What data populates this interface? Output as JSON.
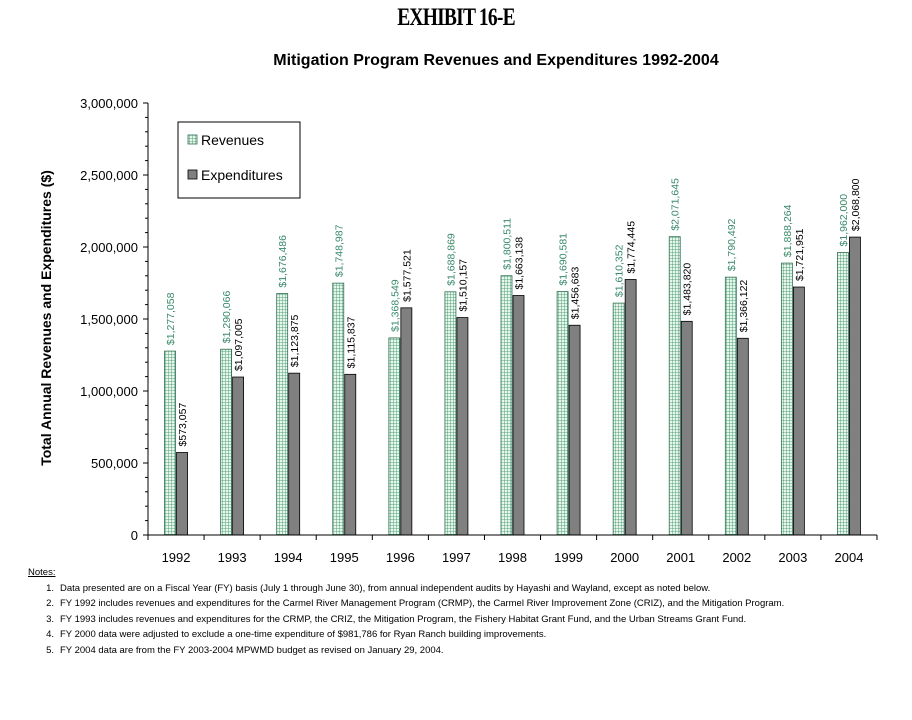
{
  "exhibit": "EXHIBIT 16-E",
  "chart_data": {
    "type": "bar",
    "title": "Mitigation Program Revenues and Expenditures 1992-2004",
    "ylabel": "Total Annual Revenues and Expenditures ($)",
    "xlabel": "",
    "ylim": [
      0,
      3000000
    ],
    "yticks": [
      0,
      500000,
      1000000,
      1500000,
      2000000,
      2500000,
      3000000
    ],
    "ytick_labels": [
      "0",
      "500,000",
      "1,000,000",
      "1,500,000",
      "2,000,000",
      "2,500,000",
      "3,000,000"
    ],
    "categories": [
      "1992",
      "1993",
      "1994",
      "1995",
      "1996",
      "1997",
      "1998",
      "1999",
      "2000",
      "2001",
      "2002",
      "2003",
      "2004"
    ],
    "legend_position": "top-left",
    "series": [
      {
        "name": "Revenues",
        "color": "#c8e6d4",
        "label_color": "#3a8a6a",
        "values": [
          1277058,
          1290066,
          1676486,
          1748987,
          1368549,
          1688869,
          1800511,
          1690581,
          1610352,
          2071645,
          1790492,
          1888264,
          1962000
        ],
        "labels": [
          "$1,277,058",
          "$1,290,066",
          "$1,676,486",
          "$1,748,987",
          "$1,368,549",
          "$1,688,869",
          "$1,800,511",
          "$1,690,581",
          "$1,610,352",
          "$2,071,645",
          "$1,790,492",
          "$1,888,264",
          "$1,962,000"
        ]
      },
      {
        "name": "Expenditures",
        "color": "#808080",
        "label_color": "#000000",
        "values": [
          573057,
          1097005,
          1123875,
          1115837,
          1577521,
          1510157,
          1663138,
          1456683,
          1774445,
          1483820,
          1366122,
          1721951,
          2068800
        ],
        "labels": [
          "$573,057",
          "$1,097,005",
          "$1,123,875",
          "$1,115,837",
          "$1,577,521",
          "$1,510,157",
          "$1,663,138",
          "$1,456,683",
          "$1,774,445",
          "$1,483,820",
          "$1,366,122",
          "$1,721,951",
          "$2,068,800"
        ]
      }
    ]
  },
  "notes": {
    "heading": "Notes:",
    "items": [
      {
        "num": "1.",
        "text": "Data presented are on a Fiscal Year (FY) basis (July 1 through June 30), from annual independent audits by Hayashi and Wayland, except as noted below."
      },
      {
        "num": "2.",
        "text": "FY 1992 includes revenues and expenditures for  the Carmel River Management Program (CRMP), the Carmel River Improvement Zone (CRIZ), and the Mitigation Program."
      },
      {
        "num": "3.",
        "text": "FY 1993 includes revenues and expenditures for  the CRMP, the CRIZ, the Mitigation Program, the Fishery Habitat Grant Fund, and the Urban Streams Grant Fund."
      },
      {
        "num": "4.",
        "text": "FY 2000 data were adjusted to exclude a one-time expenditure of $981,786 for Ryan Ranch building improvements."
      },
      {
        "num": "5.",
        "text": "FY 2004 data are from the FY 2003-2004 MPWMD budget as revised on January 29, 2004."
      }
    ]
  }
}
